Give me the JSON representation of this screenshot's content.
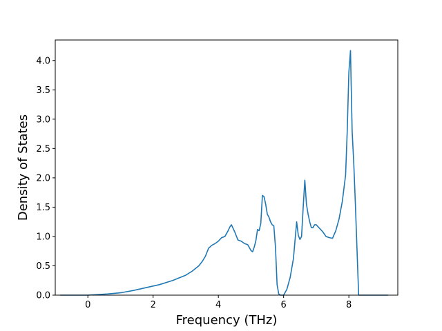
{
  "chart_data": {
    "type": "line",
    "title": "",
    "xlabel": "Frequency (THz)",
    "ylabel": "Density of States",
    "xlim": [
      -1.0,
      9.5
    ],
    "ylim": [
      0.0,
      4.35
    ],
    "xticks": [
      0,
      2,
      4,
      6,
      8
    ],
    "xtick_labels": [
      "0",
      "2",
      "4",
      "6",
      "8"
    ],
    "yticks": [
      0.0,
      0.5,
      1.0,
      1.5,
      2.0,
      2.5,
      3.0,
      3.5,
      4.0
    ],
    "ytick_labels": [
      "0.0",
      "0.5",
      "1.0",
      "1.5",
      "2.0",
      "2.5",
      "3.0",
      "3.5",
      "4.0"
    ],
    "grid": false,
    "series": [
      {
        "color": "#1f77b4",
        "x": [
          -0.85,
          -0.4,
          0.0,
          0.3,
          0.6,
          1.0,
          1.4,
          1.8,
          2.2,
          2.6,
          3.0,
          3.2,
          3.4,
          3.5,
          3.6,
          3.7,
          3.8,
          3.9,
          4.0,
          4.05,
          4.1,
          4.2,
          4.3,
          4.35,
          4.4,
          4.5,
          4.6,
          4.7,
          4.8,
          4.9,
          5.0,
          5.05,
          5.1,
          5.15,
          5.2,
          5.25,
          5.3,
          5.35,
          5.4,
          5.45,
          5.5,
          5.55,
          5.6,
          5.65,
          5.7,
          5.75,
          5.8,
          5.85,
          5.9,
          6.0,
          6.1,
          6.2,
          6.3,
          6.4,
          6.45,
          6.5,
          6.55,
          6.6,
          6.65,
          6.7,
          6.75,
          6.8,
          6.85,
          6.9,
          6.95,
          7.0,
          7.1,
          7.2,
          7.3,
          7.4,
          7.5,
          7.6,
          7.7,
          7.8,
          7.9,
          7.95,
          8.0,
          8.05,
          8.1,
          8.15,
          8.2,
          8.3,
          8.4,
          8.5,
          8.8,
          9.2
        ],
        "y": [
          0.0,
          0.0,
          0.0,
          0.01,
          0.02,
          0.04,
          0.08,
          0.13,
          0.18,
          0.25,
          0.34,
          0.41,
          0.5,
          0.57,
          0.66,
          0.8,
          0.85,
          0.88,
          0.92,
          0.95,
          0.98,
          1.0,
          1.1,
          1.16,
          1.2,
          1.08,
          0.94,
          0.92,
          0.88,
          0.86,
          0.76,
          0.74,
          0.82,
          0.93,
          1.12,
          1.1,
          1.22,
          1.7,
          1.68,
          1.55,
          1.38,
          1.33,
          1.25,
          1.2,
          1.18,
          0.82,
          0.18,
          0.02,
          0.0,
          0.0,
          0.1,
          0.3,
          0.62,
          1.25,
          1.02,
          0.95,
          1.0,
          1.5,
          1.96,
          1.55,
          1.38,
          1.25,
          1.15,
          1.15,
          1.2,
          1.2,
          1.14,
          1.08,
          1.0,
          0.98,
          0.97,
          1.1,
          1.3,
          1.6,
          2.05,
          2.8,
          3.8,
          4.17,
          2.8,
          2.25,
          1.55,
          0.0,
          0.0,
          0.0,
          0.0,
          0.0
        ]
      }
    ]
  }
}
